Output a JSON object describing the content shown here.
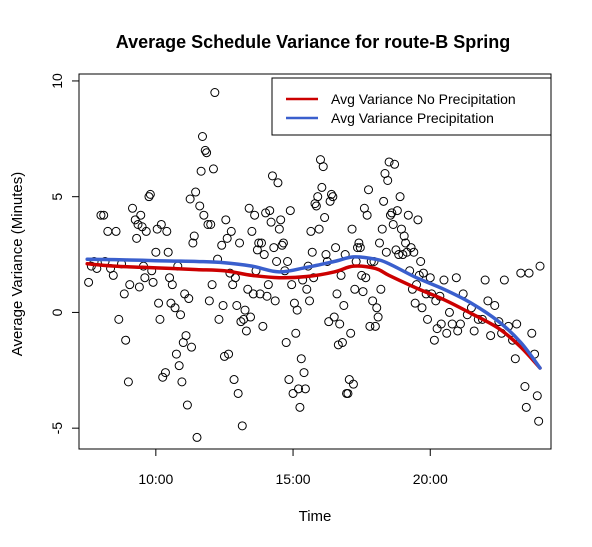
{
  "chart_data": {
    "type": "scatter",
    "title": "Average Schedule Variance for route-B Spring",
    "xlabel": "Time",
    "ylabel": "Average Variance (Minutes)",
    "x_unit": "hour of day",
    "xlim": [
      7.2,
      24.4
    ],
    "ylim": [
      -5.9,
      10.3
    ],
    "x_ticks": [
      {
        "value": 10,
        "label": "10:00"
      },
      {
        "value": 15,
        "label": "15:00"
      },
      {
        "value": 20,
        "label": "20:00"
      }
    ],
    "y_ticks": [
      {
        "value": -5,
        "label": "-5"
      },
      {
        "value": 0,
        "label": "0"
      },
      {
        "value": 5,
        "label": "5"
      },
      {
        "value": 10,
        "label": "10"
      }
    ],
    "grid": false,
    "legend": {
      "placement": "top-right",
      "entries": [
        {
          "label": "Avg Variance No Precipitation",
          "color": "#cc0000"
        },
        {
          "label": "Avg Variance Precipitation",
          "color": "#3a5fcd"
        }
      ]
    },
    "series": [
      {
        "name": "Avg Variance No Precipitation",
        "kind": "smooth-line",
        "color": "#cc0000",
        "x": [
          7.5,
          8.5,
          9.5,
          10.5,
          11.5,
          12.5,
          13.5,
          14.5,
          15.5,
          16.5,
          17.2,
          18.0,
          18.5,
          19.5,
          20.5,
          21.5,
          22.5,
          23.3,
          24.0
        ],
        "y": [
          2.1,
          2.0,
          1.95,
          1.9,
          1.85,
          1.8,
          1.6,
          1.5,
          1.55,
          1.75,
          2.0,
          1.9,
          1.6,
          1.05,
          0.55,
          -0.05,
          -0.7,
          -1.5,
          -2.4
        ]
      },
      {
        "name": "Avg Variance Precipitation",
        "kind": "smooth-line",
        "color": "#3a5fcd",
        "x": [
          7.5,
          8.5,
          9.5,
          10.5,
          11.5,
          12.5,
          13.5,
          14.5,
          15.5,
          16.5,
          17.2,
          18.0,
          18.5,
          19.5,
          20.5,
          21.5,
          22.5,
          23.3,
          24.0
        ],
        "y": [
          2.3,
          2.28,
          2.25,
          2.22,
          2.2,
          2.15,
          2.0,
          1.75,
          1.95,
          2.2,
          2.4,
          2.3,
          2.1,
          1.5,
          1.0,
          0.4,
          -0.4,
          -1.3,
          -2.4
        ]
      },
      {
        "name": "",
        "kind": "points",
        "color": "#000000",
        "points": [
          [
            7.55,
            1.3
          ],
          [
            7.65,
            2.0
          ],
          [
            7.75,
            2.2
          ],
          [
            7.85,
            1.9
          ],
          [
            8.0,
            4.2
          ],
          [
            8.1,
            4.2
          ],
          [
            8.15,
            2.2
          ],
          [
            8.25,
            3.5
          ],
          [
            8.35,
            1.9
          ],
          [
            8.45,
            1.6
          ],
          [
            8.55,
            3.5
          ],
          [
            8.65,
            -0.3
          ],
          [
            8.75,
            2.1
          ],
          [
            8.85,
            0.8
          ],
          [
            8.9,
            -1.2
          ],
          [
            9.0,
            -3.0
          ],
          [
            9.05,
            1.2
          ],
          [
            9.15,
            4.5
          ],
          [
            9.25,
            4.0
          ],
          [
            9.3,
            3.2
          ],
          [
            9.35,
            3.8
          ],
          [
            9.4,
            1.1
          ],
          [
            9.45,
            4.2
          ],
          [
            9.5,
            3.7
          ],
          [
            9.55,
            2.0
          ],
          [
            9.6,
            1.5
          ],
          [
            9.65,
            3.5
          ],
          [
            9.75,
            5.0
          ],
          [
            9.8,
            5.1
          ],
          [
            9.85,
            1.8
          ],
          [
            9.9,
            1.3
          ],
          [
            10.0,
            2.6
          ],
          [
            10.05,
            3.6
          ],
          [
            10.1,
            0.4
          ],
          [
            10.15,
            -0.3
          ],
          [
            10.2,
            3.8
          ],
          [
            10.25,
            -2.8
          ],
          [
            10.35,
            -2.6
          ],
          [
            10.4,
            3.5
          ],
          [
            10.45,
            2.6
          ],
          [
            10.5,
            1.5
          ],
          [
            10.55,
            0.4
          ],
          [
            10.6,
            1.2
          ],
          [
            10.7,
            0.2
          ],
          [
            10.75,
            -1.8
          ],
          [
            10.8,
            2.0
          ],
          [
            10.85,
            -2.3
          ],
          [
            10.9,
            -0.1
          ],
          [
            10.95,
            -3.0
          ],
          [
            11.0,
            -1.3
          ],
          [
            11.05,
            0.8
          ],
          [
            11.1,
            -1.0
          ],
          [
            11.15,
            -4.0
          ],
          [
            11.2,
            0.6
          ],
          [
            11.25,
            4.9
          ],
          [
            11.3,
            -1.5
          ],
          [
            11.35,
            3.0
          ],
          [
            11.4,
            3.3
          ],
          [
            11.45,
            5.2
          ],
          [
            11.5,
            -5.4
          ],
          [
            11.6,
            4.6
          ],
          [
            11.65,
            6.1
          ],
          [
            11.7,
            7.6
          ],
          [
            11.75,
            4.2
          ],
          [
            11.8,
            7.0
          ],
          [
            11.85,
            6.9
          ],
          [
            11.9,
            3.8
          ],
          [
            11.95,
            0.5
          ],
          [
            12.0,
            3.8
          ],
          [
            12.05,
            1.2
          ],
          [
            12.1,
            6.2
          ],
          [
            12.15,
            9.5
          ],
          [
            12.25,
            2.3
          ],
          [
            12.3,
            -0.3
          ],
          [
            12.4,
            2.9
          ],
          [
            12.45,
            0.3
          ],
          [
            12.5,
            -1.9
          ],
          [
            12.55,
            4.0
          ],
          [
            12.6,
            3.2
          ],
          [
            12.65,
            -1.8
          ],
          [
            12.7,
            1.7
          ],
          [
            12.75,
            3.5
          ],
          [
            12.8,
            1.2
          ],
          [
            12.85,
            -2.9
          ],
          [
            12.9,
            1.5
          ],
          [
            12.95,
            0.3
          ],
          [
            13.0,
            -3.5
          ],
          [
            13.05,
            3.0
          ],
          [
            13.1,
            -0.4
          ],
          [
            13.15,
            -4.9
          ],
          [
            13.2,
            -0.3
          ],
          [
            13.25,
            0.1
          ],
          [
            13.3,
            -0.8
          ],
          [
            13.35,
            1.0
          ],
          [
            13.4,
            4.5
          ],
          [
            13.45,
            -0.2
          ],
          [
            13.5,
            3.5
          ],
          [
            13.55,
            0.8
          ],
          [
            13.6,
            4.2
          ],
          [
            13.65,
            1.8
          ],
          [
            13.7,
            2.7
          ],
          [
            13.75,
            3.0
          ],
          [
            13.8,
            0.8
          ],
          [
            13.85,
            3.0
          ],
          [
            13.9,
            -0.6
          ],
          [
            13.95,
            2.5
          ],
          [
            14.0,
            4.3
          ],
          [
            14.05,
            0.7
          ],
          [
            14.1,
            1.2
          ],
          [
            14.15,
            4.4
          ],
          [
            14.2,
            3.9
          ],
          [
            14.25,
            5.9
          ],
          [
            14.3,
            2.8
          ],
          [
            14.35,
            0.5
          ],
          [
            14.4,
            2.2
          ],
          [
            14.45,
            5.6
          ],
          [
            14.5,
            3.6
          ],
          [
            14.55,
            4.0
          ],
          [
            14.6,
            2.9
          ],
          [
            14.65,
            3.0
          ],
          [
            14.7,
            1.8
          ],
          [
            14.75,
            -1.3
          ],
          [
            14.8,
            2.2
          ],
          [
            14.85,
            -2.9
          ],
          [
            14.9,
            4.4
          ],
          [
            14.95,
            1.2
          ],
          [
            15.0,
            -3.5
          ],
          [
            15.05,
            0.4
          ],
          [
            15.1,
            -0.9
          ],
          [
            15.15,
            0.1
          ],
          [
            15.2,
            -3.3
          ],
          [
            15.25,
            -4.1
          ],
          [
            15.3,
            -2.0
          ],
          [
            15.35,
            1.4
          ],
          [
            15.4,
            -2.6
          ],
          [
            15.45,
            -3.3
          ],
          [
            15.5,
            1.0
          ],
          [
            15.55,
            2.0
          ],
          [
            15.6,
            0.5
          ],
          [
            15.65,
            3.5
          ],
          [
            15.7,
            2.6
          ],
          [
            15.75,
            1.5
          ],
          [
            15.8,
            4.7
          ],
          [
            15.85,
            4.6
          ],
          [
            15.9,
            5.0
          ],
          [
            15.95,
            3.6
          ],
          [
            16.0,
            6.6
          ],
          [
            16.05,
            5.4
          ],
          [
            16.1,
            6.3
          ],
          [
            16.15,
            4.1
          ],
          [
            16.2,
            2.5
          ],
          [
            16.25,
            2.2
          ],
          [
            16.3,
            -0.4
          ],
          [
            16.35,
            4.8
          ],
          [
            16.4,
            5.1
          ],
          [
            16.45,
            5.0
          ],
          [
            16.5,
            -0.2
          ],
          [
            16.55,
            2.8
          ],
          [
            16.6,
            0.8
          ],
          [
            16.65,
            -1.4
          ],
          [
            16.7,
            -0.5
          ],
          [
            16.75,
            1.6
          ],
          [
            16.8,
            -1.3
          ],
          [
            16.85,
            0.3
          ],
          [
            16.9,
            2.5
          ],
          [
            16.95,
            -3.5
          ],
          [
            17.0,
            -3.5
          ],
          [
            17.05,
            -2.9
          ],
          [
            17.1,
            -0.9
          ],
          [
            17.15,
            3.6
          ],
          [
            17.2,
            -3.1
          ],
          [
            17.25,
            1.0
          ],
          [
            17.3,
            2.2
          ],
          [
            17.35,
            2.8
          ],
          [
            17.4,
            3.0
          ],
          [
            17.45,
            2.8
          ],
          [
            17.5,
            1.6
          ],
          [
            17.55,
            0.9
          ],
          [
            17.6,
            4.5
          ],
          [
            17.65,
            1.5
          ],
          [
            17.7,
            4.2
          ],
          [
            17.75,
            5.3
          ],
          [
            17.8,
            -0.6
          ],
          [
            17.85,
            2.2
          ],
          [
            17.9,
            0.5
          ],
          [
            17.95,
            2.2
          ],
          [
            18.0,
            -0.6
          ],
          [
            18.05,
            0.2
          ],
          [
            18.1,
            -0.2
          ],
          [
            18.15,
            3.0
          ],
          [
            18.2,
            1.0
          ],
          [
            18.25,
            3.6
          ],
          [
            18.3,
            4.8
          ],
          [
            18.35,
            6.0
          ],
          [
            18.4,
            2.6
          ],
          [
            18.45,
            5.7
          ],
          [
            18.5,
            6.5
          ],
          [
            18.55,
            4.2
          ],
          [
            18.6,
            4.3
          ],
          [
            18.65,
            3.8
          ],
          [
            18.7,
            6.4
          ],
          [
            18.75,
            2.7
          ],
          [
            18.8,
            4.4
          ],
          [
            18.85,
            2.5
          ],
          [
            18.9,
            5.0
          ],
          [
            18.95,
            3.6
          ],
          [
            19.0,
            2.5
          ],
          [
            19.05,
            3.3
          ],
          [
            19.1,
            3.0
          ],
          [
            19.15,
            2.6
          ],
          [
            19.2,
            4.2
          ],
          [
            19.25,
            1.8
          ],
          [
            19.3,
            2.8
          ],
          [
            19.35,
            1.0
          ],
          [
            19.4,
            2.6
          ],
          [
            19.45,
            0.4
          ],
          [
            19.5,
            1.2
          ],
          [
            19.55,
            4.0
          ],
          [
            19.6,
            1.6
          ],
          [
            19.65,
            2.2
          ],
          [
            19.7,
            0.2
          ],
          [
            19.75,
            1.7
          ],
          [
            19.85,
            0.8
          ],
          [
            19.9,
            -0.3
          ],
          [
            20.0,
            1.5
          ],
          [
            20.05,
            0.8
          ],
          [
            20.15,
            -1.2
          ],
          [
            20.2,
            0.5
          ],
          [
            20.25,
            -0.7
          ],
          [
            20.35,
            0.7
          ],
          [
            20.4,
            -0.5
          ],
          [
            20.5,
            1.4
          ],
          [
            20.6,
            -0.9
          ],
          [
            20.7,
            0.0
          ],
          [
            20.8,
            -0.5
          ],
          [
            20.95,
            1.5
          ],
          [
            21.0,
            -0.8
          ],
          [
            21.1,
            -0.5
          ],
          [
            21.2,
            0.8
          ],
          [
            21.35,
            -0.1
          ],
          [
            21.5,
            0.2
          ],
          [
            21.6,
            -0.8
          ],
          [
            21.75,
            -0.3
          ],
          [
            21.9,
            -0.3
          ],
          [
            22.0,
            1.4
          ],
          [
            22.1,
            0.5
          ],
          [
            22.2,
            -1.0
          ],
          [
            22.35,
            0.3
          ],
          [
            22.5,
            -0.4
          ],
          [
            22.6,
            -0.9
          ],
          [
            22.7,
            1.4
          ],
          [
            22.85,
            -0.6
          ],
          [
            23.0,
            -1.2
          ],
          [
            23.1,
            -2.0
          ],
          [
            23.15,
            -0.5
          ],
          [
            23.3,
            1.7
          ],
          [
            23.45,
            -3.2
          ],
          [
            23.5,
            -4.1
          ],
          [
            23.6,
            1.7
          ],
          [
            23.7,
            -0.9
          ],
          [
            23.8,
            -1.8
          ],
          [
            23.9,
            -3.6
          ],
          [
            23.95,
            -4.7
          ],
          [
            24.0,
            2.0
          ]
        ]
      }
    ]
  }
}
